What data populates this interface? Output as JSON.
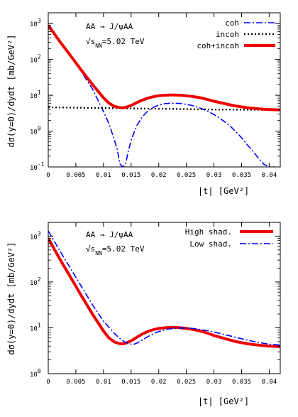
{
  "chart_data": [
    {
      "type": "line",
      "panel": "top",
      "ylabel": "dσ(y=0)/dydt  [mb/GeV²]",
      "xlabel": "|t|  [GeV²]",
      "xlim": [
        0,
        0.042
      ],
      "ylim": [
        0.1,
        2000
      ],
      "yscale": "log",
      "x_ticks": [
        "0",
        "0.005",
        "0.01",
        "0.015",
        "0.02",
        "0.025",
        "0.03",
        "0.035",
        "0.04"
      ],
      "x_tick_values": [
        0,
        0.005,
        0.01,
        0.015,
        0.02,
        0.025,
        0.03,
        0.035,
        0.04
      ],
      "y_ticks": [
        {
          "value": 0.1,
          "base": "10",
          "exp": "-1"
        },
        {
          "value": 1,
          "base": "10",
          "exp": "0"
        },
        {
          "value": 10,
          "base": "10",
          "exp": "1"
        },
        {
          "value": 100,
          "base": "10",
          "exp": "2"
        },
        {
          "value": 1000,
          "base": "10",
          "exp": "3"
        }
      ],
      "annotations": {
        "reaction": "AA → J/ψAA",
        "energy_prefix": "√s",
        "energy_sub": "NN",
        "energy_value": "=5.02 TeV"
      },
      "legend": {
        "placement": "top-right"
      },
      "series": [
        {
          "name": "coh",
          "style": "dashdot",
          "color": "#0000ff",
          "x": [
            0,
            0.002,
            0.004,
            0.006,
            0.008,
            0.01,
            0.011,
            0.012,
            0.0125,
            0.013,
            0.0135,
            0.014,
            0.0145,
            0.015,
            0.016,
            0.017,
            0.018,
            0.019,
            0.02,
            0.021,
            0.022,
            0.023,
            0.024,
            0.025,
            0.026,
            0.027,
            0.028,
            0.029,
            0.03,
            0.031,
            0.032,
            0.033,
            0.034,
            0.035,
            0.036,
            0.037,
            0.038,
            0.039,
            0.04,
            0.0405,
            0.041
          ],
          "y": [
            850,
            330,
            130,
            45,
            15,
            3.5,
            1.6,
            0.55,
            0.3,
            0.12,
            0.1,
            0.12,
            0.28,
            0.55,
            1.4,
            2.5,
            3.6,
            4.6,
            5.3,
            5.8,
            6.0,
            6.0,
            5.9,
            5.6,
            5.2,
            4.7,
            4.1,
            3.5,
            2.9,
            2.3,
            1.8,
            1.35,
            0.95,
            0.65,
            0.42,
            0.28,
            0.18,
            0.12,
            0.1,
            0.1,
            0.1
          ]
        },
        {
          "name": "incoh",
          "style": "dotted",
          "color": "#000000",
          "x": [
            0,
            0.005,
            0.01,
            0.015,
            0.02,
            0.025,
            0.03,
            0.035,
            0.04,
            0.042
          ],
          "y": [
            4.6,
            4.5,
            4.4,
            4.3,
            4.2,
            4.1,
            4.0,
            3.95,
            3.9,
            3.85
          ]
        },
        {
          "name": "coh+incoh",
          "style": "solid",
          "color": "#ee0000",
          "x": [
            0,
            0.002,
            0.004,
            0.006,
            0.008,
            0.01,
            0.011,
            0.012,
            0.013,
            0.0135,
            0.014,
            0.015,
            0.016,
            0.017,
            0.018,
            0.019,
            0.02,
            0.021,
            0.022,
            0.023,
            0.024,
            0.025,
            0.026,
            0.027,
            0.028,
            0.029,
            0.03,
            0.032,
            0.034,
            0.036,
            0.038,
            0.04,
            0.042
          ],
          "y": [
            900,
            330,
            130,
            50,
            20,
            8.5,
            6.0,
            4.9,
            4.5,
            4.5,
            4.6,
            5.2,
            6.2,
            7.3,
            8.3,
            9.1,
            9.7,
            10.0,
            10.2,
            10.2,
            10.0,
            9.7,
            9.3,
            8.8,
            8.2,
            7.5,
            6.8,
            5.8,
            5.0,
            4.5,
            4.2,
            4.0,
            3.9
          ]
        }
      ]
    },
    {
      "type": "line",
      "panel": "bottom",
      "ylabel": "dσ(y=0)/dydt  [mb/GeV²]",
      "xlabel": "|t|  [GeV²]",
      "xlim": [
        0,
        0.042
      ],
      "ylim": [
        1,
        2000
      ],
      "yscale": "log",
      "x_ticks": [
        "0",
        "0.005",
        "0.01",
        "0.015",
        "0.02",
        "0.025",
        "0.03",
        "0.035",
        "0.04"
      ],
      "x_tick_values": [
        0,
        0.005,
        0.01,
        0.015,
        0.02,
        0.025,
        0.03,
        0.035,
        0.04
      ],
      "y_ticks": [
        {
          "value": 1,
          "base": "10",
          "exp": "0"
        },
        {
          "value": 10,
          "base": "10",
          "exp": "1"
        },
        {
          "value": 100,
          "base": "10",
          "exp": "2"
        },
        {
          "value": 1000,
          "base": "10",
          "exp": "3"
        }
      ],
      "annotations": {
        "reaction": "AA → J/ψAA",
        "energy_prefix": "√s",
        "energy_sub": "NN",
        "energy_value": "=5.02 TeV"
      },
      "legend": {
        "placement": "top-right"
      },
      "series": [
        {
          "name": "High shad.",
          "style": "solid",
          "color": "#ee0000",
          "x": [
            0,
            0.002,
            0.004,
            0.006,
            0.008,
            0.01,
            0.011,
            0.012,
            0.013,
            0.0135,
            0.014,
            0.015,
            0.016,
            0.017,
            0.018,
            0.019,
            0.02,
            0.021,
            0.022,
            0.023,
            0.024,
            0.025,
            0.026,
            0.027,
            0.028,
            0.029,
            0.03,
            0.032,
            0.034,
            0.036,
            0.038,
            0.04,
            0.042
          ],
          "y": [
            900,
            330,
            130,
            50,
            20,
            8.5,
            6.0,
            4.9,
            4.5,
            4.5,
            4.6,
            5.2,
            6.2,
            7.3,
            8.3,
            9.1,
            9.7,
            10.0,
            10.2,
            10.2,
            10.0,
            9.7,
            9.3,
            8.8,
            8.2,
            7.5,
            6.8,
            5.8,
            5.0,
            4.5,
            4.2,
            4.0,
            3.9
          ]
        },
        {
          "name": "Low shad.",
          "style": "dashdot",
          "color": "#0000ff",
          "x": [
            0,
            0.002,
            0.004,
            0.006,
            0.008,
            0.01,
            0.012,
            0.013,
            0.014,
            0.015,
            0.0155,
            0.016,
            0.017,
            0.018,
            0.019,
            0.02,
            0.021,
            0.022,
            0.023,
            0.024,
            0.025,
            0.026,
            0.027,
            0.028,
            0.029,
            0.03,
            0.031,
            0.032,
            0.034,
            0.036,
            0.038,
            0.04,
            0.042
          ],
          "y": [
            1300,
            500,
            200,
            80,
            32,
            14,
            7.5,
            5.8,
            4.8,
            4.4,
            4.4,
            4.6,
            5.4,
            6.4,
            7.4,
            8.3,
            9.0,
            9.5,
            9.8,
            9.9,
            9.9,
            9.7,
            9.4,
            9.0,
            8.6,
            8.1,
            7.6,
            7.1,
            6.2,
            5.4,
            4.8,
            4.4,
            4.2
          ]
        }
      ]
    }
  ]
}
